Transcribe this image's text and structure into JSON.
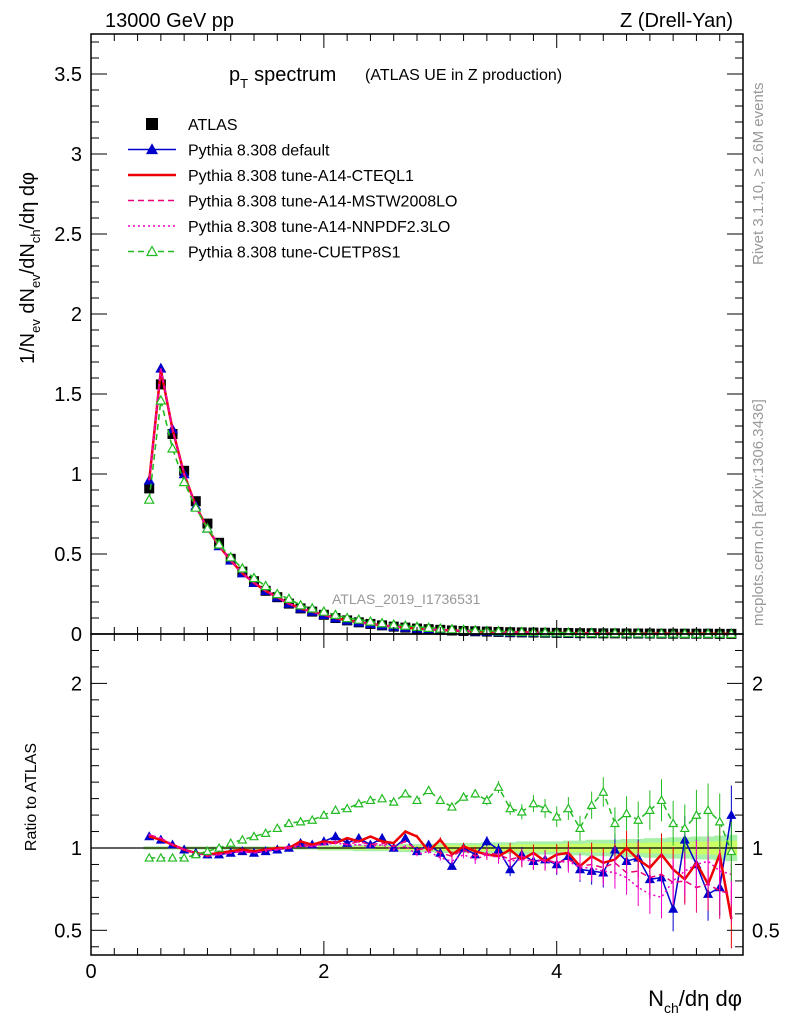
{
  "header": {
    "left": "13000 GeV pp",
    "right": "Z (Drell-Yan)"
  },
  "side_labels": {
    "rivet": "Rivet 3.1.10, ≥ 2.6M events",
    "mcplots": "mcplots.cern.ch [arXiv:1306.3436]"
  },
  "chart_data": [
    {
      "type": "line",
      "panel": "main",
      "title": "p_T spectrum",
      "title_main": "p",
      "title_sub": "T",
      "title_rest": "spectrum",
      "subtitle": "(ATLAS UE in Z production)",
      "watermark": "ATLAS_2019_I1736531",
      "ylabel": "1/N_ev dN_ev/dN_ch/dη dφ",
      "xlabel": "N_ch/dη dφ",
      "xlim": [
        0,
        5.6
      ],
      "ylim": [
        0,
        3.75
      ],
      "yticks": [
        "0",
        "0.5",
        "1",
        "1.5",
        "2",
        "2.5",
        "3",
        "3.5"
      ],
      "xticks": [
        "0",
        "2",
        "4"
      ],
      "legend_position": "top-left",
      "x": [
        0.5,
        0.6,
        0.7,
        0.8,
        0.9,
        1.0,
        1.1,
        1.2,
        1.3,
        1.4,
        1.5,
        1.6,
        1.7,
        1.8,
        1.9,
        2.0,
        2.1,
        2.2,
        2.3,
        2.4,
        2.5,
        2.6,
        2.7,
        2.8,
        2.9,
        3.0,
        3.1,
        3.2,
        3.3,
        3.4,
        3.5,
        3.6,
        3.7,
        3.8,
        3.9,
        4.0,
        4.1,
        4.2,
        4.3,
        4.4,
        4.5,
        4.6,
        4.7,
        4.8,
        4.9,
        5.0,
        5.1,
        5.2,
        5.3,
        5.4,
        5.5
      ],
      "series": [
        {
          "name": "ATLAS",
          "color": "#000000",
          "style": "marker",
          "values": [
            0.91,
            1.56,
            1.25,
            1.02,
            0.83,
            0.69,
            0.57,
            0.47,
            0.39,
            0.33,
            0.27,
            0.23,
            0.19,
            0.16,
            0.14,
            0.12,
            0.1,
            0.085,
            0.073,
            0.063,
            0.054,
            0.046,
            0.04,
            0.034,
            0.03,
            0.026,
            0.022,
            0.019,
            0.017,
            0.015,
            0.013,
            0.011,
            0.01,
            0.009,
            0.008,
            0.007,
            0.006,
            0.005,
            0.005,
            0.004,
            0.004,
            0.003,
            0.003,
            0.003,
            0.002,
            0.002,
            0.002,
            0.002,
            0.002,
            0.001,
            0.001
          ]
        },
        {
          "name": "Pythia 8.308 default",
          "color": "#0000cc",
          "style": "solid-triangle",
          "values": [
            0.96,
            1.66,
            1.28,
            1.0,
            0.8,
            0.66,
            0.55,
            0.46,
            0.38,
            0.32,
            0.27,
            0.23,
            0.19,
            0.16,
            0.14,
            0.12,
            0.1,
            0.085,
            0.073,
            0.063,
            0.054,
            0.046,
            0.04,
            0.034,
            0.03,
            0.026,
            0.022,
            0.019,
            0.017,
            0.015,
            0.013,
            0.011,
            0.01,
            0.009,
            0.008,
            0.007,
            0.006,
            0.005,
            0.005,
            0.004,
            0.004,
            0.003,
            0.003,
            0.003,
            0.002,
            0.002,
            0.002,
            0.002,
            0.002,
            0.001,
            0.001
          ]
        },
        {
          "name": "Pythia 8.308 tune-A14-CTEQL1",
          "color": "#ee0000",
          "style": "solid",
          "values": [
            0.96,
            1.65,
            1.28,
            1.0,
            0.8,
            0.66,
            0.55,
            0.46,
            0.38,
            0.32,
            0.27,
            0.23,
            0.19,
            0.16,
            0.14,
            0.12,
            0.1,
            0.085,
            0.073,
            0.063,
            0.054,
            0.046,
            0.04,
            0.034,
            0.03,
            0.026,
            0.022,
            0.019,
            0.017,
            0.015,
            0.013,
            0.011,
            0.01,
            0.009,
            0.008,
            0.007,
            0.006,
            0.005,
            0.005,
            0.004,
            0.004,
            0.003,
            0.003,
            0.003,
            0.002,
            0.002,
            0.002,
            0.002,
            0.002,
            0.001,
            0.001
          ]
        },
        {
          "name": "Pythia 8.308 tune-A14-MSTW2008LO",
          "color": "#ee0077",
          "style": "dashed",
          "values": [
            0.96,
            1.66,
            1.28,
            1.0,
            0.8,
            0.66,
            0.55,
            0.46,
            0.38,
            0.32,
            0.27,
            0.23,
            0.19,
            0.16,
            0.14,
            0.12,
            0.1,
            0.085,
            0.073,
            0.063,
            0.054,
            0.046,
            0.04,
            0.034,
            0.03,
            0.026,
            0.022,
            0.019,
            0.017,
            0.015,
            0.013,
            0.011,
            0.01,
            0.009,
            0.008,
            0.007,
            0.006,
            0.005,
            0.005,
            0.004,
            0.004,
            0.003,
            0.003,
            0.003,
            0.002,
            0.002,
            0.002,
            0.002,
            0.002,
            0.001,
            0.001
          ]
        },
        {
          "name": "Pythia 8.308 tune-A14-NNPDF2.3LO",
          "color": "#ee00cc",
          "style": "dotted",
          "values": [
            0.96,
            1.66,
            1.28,
            1.0,
            0.8,
            0.66,
            0.55,
            0.46,
            0.38,
            0.32,
            0.27,
            0.23,
            0.19,
            0.16,
            0.14,
            0.12,
            0.1,
            0.085,
            0.073,
            0.063,
            0.054,
            0.046,
            0.04,
            0.034,
            0.03,
            0.026,
            0.022,
            0.019,
            0.017,
            0.015,
            0.013,
            0.011,
            0.01,
            0.009,
            0.008,
            0.007,
            0.006,
            0.005,
            0.005,
            0.004,
            0.004,
            0.003,
            0.003,
            0.003,
            0.002,
            0.002,
            0.002,
            0.002,
            0.002,
            0.001,
            0.001
          ]
        },
        {
          "name": "Pythia 8.308 tune-CUETP8S1",
          "color": "#22bb22",
          "style": "dashed-open-triangle",
          "values": [
            0.84,
            1.46,
            1.16,
            0.95,
            0.79,
            0.66,
            0.56,
            0.48,
            0.41,
            0.35,
            0.3,
            0.25,
            0.22,
            0.18,
            0.16,
            0.14,
            0.12,
            0.1,
            0.09,
            0.078,
            0.068,
            0.059,
            0.052,
            0.045,
            0.039,
            0.034,
            0.03,
            0.026,
            0.023,
            0.02,
            0.017,
            0.015,
            0.013,
            0.012,
            0.01,
            0.009,
            0.008,
            0.007,
            0.006,
            0.005,
            0.005,
            0.004,
            0.004,
            0.003,
            0.003,
            0.003,
            0.002,
            0.002,
            0.002,
            0.002,
            0.001
          ]
        }
      ]
    },
    {
      "type": "line",
      "panel": "ratio",
      "ylabel": "Ratio to ATLAS",
      "xlim": [
        0,
        5.6
      ],
      "ylim": [
        0.35,
        2.3
      ],
      "yticks": [
        "0.5",
        "1",
        "2"
      ],
      "reference_line": 1,
      "x": [
        0.5,
        0.6,
        0.7,
        0.8,
        0.9,
        1.0,
        1.1,
        1.2,
        1.3,
        1.4,
        1.5,
        1.6,
        1.7,
        1.8,
        1.9,
        2.0,
        2.1,
        2.2,
        2.3,
        2.4,
        2.5,
        2.6,
        2.7,
        2.8,
        2.9,
        3.0,
        3.1,
        3.2,
        3.3,
        3.4,
        3.5,
        3.6,
        3.7,
        3.8,
        3.9,
        4.0,
        4.1,
        4.2,
        4.3,
        4.4,
        4.5,
        4.6,
        4.7,
        4.8,
        4.9,
        5.0,
        5.1,
        5.2,
        5.3,
        5.4,
        5.5
      ],
      "band": {
        "color_inner": "#ccff66",
        "color_outer": "#99ee99",
        "half_width": [
          0.01,
          0.01,
          0.01,
          0.01,
          0.01,
          0.01,
          0.01,
          0.01,
          0.01,
          0.01,
          0.01,
          0.01,
          0.01,
          0.01,
          0.01,
          0.015,
          0.015,
          0.015,
          0.02,
          0.02,
          0.02,
          0.02,
          0.025,
          0.025,
          0.025,
          0.03,
          0.03,
          0.03,
          0.03,
          0.035,
          0.035,
          0.035,
          0.04,
          0.04,
          0.04,
          0.04,
          0.045,
          0.045,
          0.05,
          0.05,
          0.05,
          0.055,
          0.055,
          0.06,
          0.06,
          0.065,
          0.065,
          0.07,
          0.07,
          0.075,
          0.08
        ]
      },
      "series": [
        {
          "name": "Pythia 8.308 default",
          "color": "#0000cc",
          "style": "solid-triangle",
          "values": [
            1.07,
            1.05,
            1.02,
            0.99,
            0.97,
            0.96,
            0.96,
            0.97,
            0.98,
            0.97,
            0.98,
            0.99,
            1.0,
            1.03,
            1.02,
            1.04,
            1.07,
            1.03,
            1.06,
            1.02,
            1.06,
            1.0,
            1.06,
            0.98,
            1.02,
            0.97,
            0.89,
            1.0,
            0.96,
            1.04,
            0.99,
            0.87,
            0.96,
            0.92,
            0.93,
            0.9,
            0.95,
            0.87,
            0.86,
            0.85,
            0.99,
            0.92,
            0.94,
            0.81,
            0.82,
            0.63,
            1.05,
            0.9,
            0.72,
            0.76,
            1.2
          ]
        },
        {
          "name": "Pythia 8.308 tune-A14-CTEQL1",
          "color": "#ee0000",
          "style": "solid",
          "values": [
            1.07,
            1.05,
            1.02,
            0.99,
            0.97,
            0.96,
            0.97,
            0.98,
            0.99,
            0.98,
            0.99,
            1.0,
            1.0,
            1.04,
            1.02,
            1.04,
            1.03,
            1.06,
            1.04,
            1.07,
            1.04,
            1.03,
            1.1,
            1.07,
            0.98,
            1.05,
            0.96,
            1.01,
            0.98,
            0.96,
            0.95,
            0.99,
            0.93,
            0.97,
            0.92,
            0.96,
            0.97,
            0.89,
            0.95,
            0.91,
            0.93,
            1.0,
            0.93,
            0.88,
            0.96,
            0.87,
            0.81,
            0.91,
            0.78,
            0.96,
            0.57
          ]
        },
        {
          "name": "Pythia 8.308 tune-A14-MSTW2008LO",
          "color": "#ee0077",
          "style": "dashed",
          "values": [
            1.08,
            1.06,
            1.02,
            0.99,
            0.97,
            0.95,
            0.96,
            0.97,
            0.98,
            0.97,
            0.99,
            0.99,
            1.01,
            1.02,
            1.01,
            1.03,
            1.04,
            1.02,
            1.04,
            1.02,
            1.03,
            1.01,
            1.04,
            0.99,
            1.0,
            0.97,
            0.95,
            0.99,
            0.95,
            0.97,
            0.96,
            0.93,
            0.95,
            0.92,
            0.93,
            0.91,
            0.93,
            0.89,
            0.9,
            0.88,
            0.91,
            0.85,
            0.86,
            0.82,
            0.84,
            0.79,
            0.8,
            0.76,
            0.78,
            0.74,
            0.72
          ]
        },
        {
          "name": "Pythia 8.308 tune-A14-NNPDF2.3LO",
          "color": "#ee00cc",
          "style": "dotted",
          "values": [
            1.08,
            1.06,
            1.02,
            0.99,
            0.97,
            0.96,
            0.96,
            0.97,
            0.98,
            0.97,
            0.98,
            0.99,
            1.0,
            1.01,
            1.01,
            1.02,
            1.03,
            1.02,
            1.02,
            1.01,
            1.02,
            0.99,
            1.01,
            0.96,
            0.98,
            0.94,
            0.92,
            0.96,
            0.93,
            0.96,
            0.94,
            0.92,
            0.93,
            0.92,
            0.92,
            0.91,
            0.92,
            0.88,
            0.88,
            0.86,
            0.85,
            0.82,
            0.76,
            0.72,
            0.7,
            0.8,
            0.86,
            0.9,
            0.92,
            0.86,
            0.84
          ]
        },
        {
          "name": "Pythia 8.308 tune-CUETP8S1",
          "color": "#22bb22",
          "style": "dashed-open-triangle",
          "values": [
            0.94,
            0.94,
            0.94,
            0.94,
            0.96,
            0.98,
            1.0,
            1.03,
            1.05,
            1.07,
            1.09,
            1.12,
            1.15,
            1.16,
            1.17,
            1.2,
            1.23,
            1.24,
            1.27,
            1.29,
            1.3,
            1.28,
            1.33,
            1.29,
            1.35,
            1.29,
            1.25,
            1.31,
            1.33,
            1.29,
            1.37,
            1.24,
            1.22,
            1.27,
            1.24,
            1.19,
            1.24,
            1.12,
            1.26,
            1.34,
            1.15,
            1.21,
            1.17,
            1.23,
            1.29,
            1.15,
            1.12,
            1.2,
            1.23,
            1.16,
            0.98
          ]
        }
      ]
    }
  ]
}
